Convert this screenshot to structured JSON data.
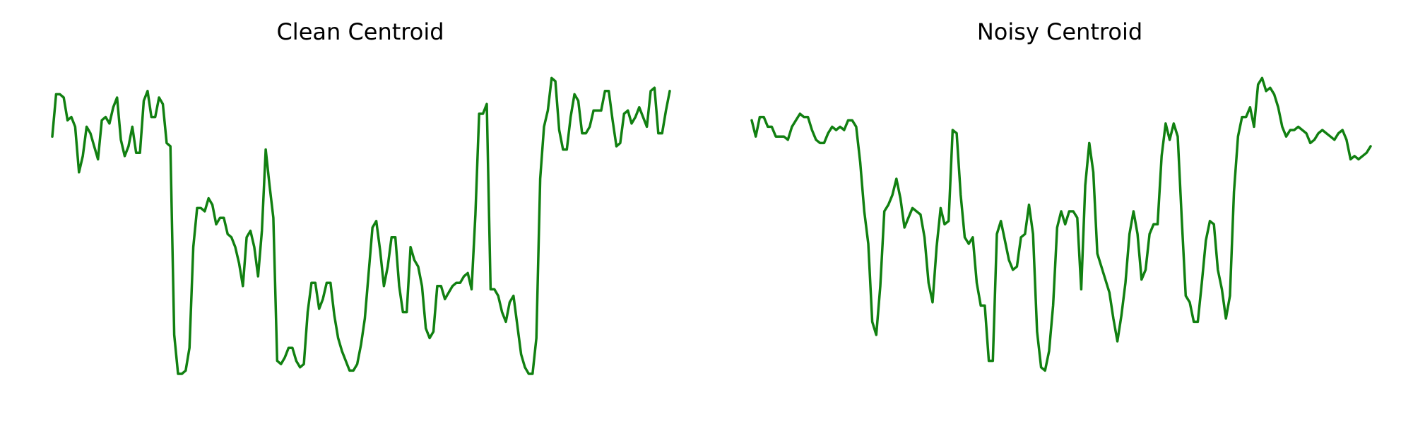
{
  "line_color": "#118011",
  "chart_data": [
    {
      "type": "line",
      "title": "Clean Centroid",
      "xlabel": "",
      "ylabel": "",
      "axes_visible": false,
      "grid": false,
      "ylim": [
        0,
        1
      ],
      "series": [
        {
          "values": [
            0.78,
            0.91,
            0.91,
            0.9,
            0.83,
            0.84,
            0.81,
            0.67,
            0.72,
            0.81,
            0.79,
            0.75,
            0.71,
            0.83,
            0.84,
            0.82,
            0.87,
            0.9,
            0.77,
            0.72,
            0.75,
            0.81,
            0.73,
            0.73,
            0.89,
            0.92,
            0.84,
            0.84,
            0.9,
            0.88,
            0.76,
            0.75,
            0.17,
            0.05,
            0.05,
            0.06,
            0.13,
            0.44,
            0.56,
            0.56,
            0.55,
            0.59,
            0.57,
            0.51,
            0.53,
            0.53,
            0.48,
            0.47,
            0.44,
            0.39,
            0.32,
            0.47,
            0.49,
            0.44,
            0.35,
            0.49,
            0.74,
            0.63,
            0.53,
            0.09,
            0.08,
            0.1,
            0.13,
            0.13,
            0.09,
            0.07,
            0.08,
            0.24,
            0.33,
            0.33,
            0.25,
            0.28,
            0.33,
            0.33,
            0.23,
            0.16,
            0.12,
            0.09,
            0.06,
            0.06,
            0.08,
            0.14,
            0.22,
            0.36,
            0.5,
            0.52,
            0.43,
            0.32,
            0.38,
            0.47,
            0.47,
            0.32,
            0.24,
            0.24,
            0.44,
            0.4,
            0.38,
            0.32,
            0.19,
            0.16,
            0.18,
            0.32,
            0.32,
            0.28,
            0.3,
            0.32,
            0.33,
            0.33,
            0.35,
            0.36,
            0.31,
            0.54,
            0.85,
            0.85,
            0.88,
            0.31,
            0.31,
            0.29,
            0.24,
            0.21,
            0.27,
            0.29,
            0.2,
            0.11,
            0.07,
            0.05,
            0.05,
            0.16,
            0.65,
            0.81,
            0.86,
            0.96,
            0.95,
            0.8,
            0.74,
            0.74,
            0.84,
            0.91,
            0.89,
            0.79,
            0.79,
            0.81,
            0.86,
            0.86,
            0.86,
            0.92,
            0.92,
            0.83,
            0.75,
            0.76,
            0.85,
            0.86,
            0.82,
            0.84,
            0.87,
            0.84,
            0.81,
            0.92,
            0.93,
            0.79,
            0.79,
            0.86,
            0.92
          ]
        }
      ]
    },
    {
      "type": "line",
      "title": "Noisy Centroid",
      "xlabel": "",
      "ylabel": "",
      "axes_visible": false,
      "grid": false,
      "ylim": [
        0,
        1
      ],
      "series": [
        {
          "values": [
            0.83,
            0.78,
            0.84,
            0.84,
            0.81,
            0.81,
            0.78,
            0.78,
            0.78,
            0.77,
            0.81,
            0.83,
            0.85,
            0.84,
            0.84,
            0.8,
            0.77,
            0.76,
            0.76,
            0.79,
            0.81,
            0.8,
            0.81,
            0.8,
            0.83,
            0.83,
            0.81,
            0.7,
            0.55,
            0.45,
            0.21,
            0.17,
            0.32,
            0.55,
            0.57,
            0.6,
            0.65,
            0.59,
            0.5,
            0.53,
            0.56,
            0.55,
            0.54,
            0.47,
            0.33,
            0.27,
            0.44,
            0.56,
            0.51,
            0.52,
            0.8,
            0.79,
            0.6,
            0.47,
            0.45,
            0.47,
            0.33,
            0.26,
            0.26,
            0.09,
            0.09,
            0.48,
            0.52,
            0.46,
            0.4,
            0.37,
            0.38,
            0.47,
            0.48,
            0.57,
            0.48,
            0.18,
            0.07,
            0.06,
            0.12,
            0.26,
            0.5,
            0.55,
            0.51,
            0.55,
            0.55,
            0.53,
            0.31,
            0.63,
            0.76,
            0.67,
            0.42,
            0.38,
            0.34,
            0.3,
            0.22,
            0.15,
            0.23,
            0.33,
            0.48,
            0.55,
            0.48,
            0.34,
            0.37,
            0.48,
            0.51,
            0.51,
            0.72,
            0.82,
            0.77,
            0.82,
            0.78,
            0.53,
            0.29,
            0.27,
            0.21,
            0.21,
            0.33,
            0.46,
            0.52,
            0.51,
            0.37,
            0.31,
            0.22,
            0.29,
            0.61,
            0.78,
            0.84,
            0.84,
            0.87,
            0.81,
            0.94,
            0.96,
            0.92,
            0.93,
            0.91,
            0.87,
            0.81,
            0.78,
            0.8,
            0.8,
            0.81,
            0.8,
            0.79,
            0.76,
            0.77,
            0.79,
            0.8,
            0.79,
            0.78,
            0.77,
            0.79,
            0.8,
            0.77,
            0.71,
            0.72,
            0.71,
            0.72,
            0.73,
            0.75
          ]
        }
      ]
    }
  ]
}
